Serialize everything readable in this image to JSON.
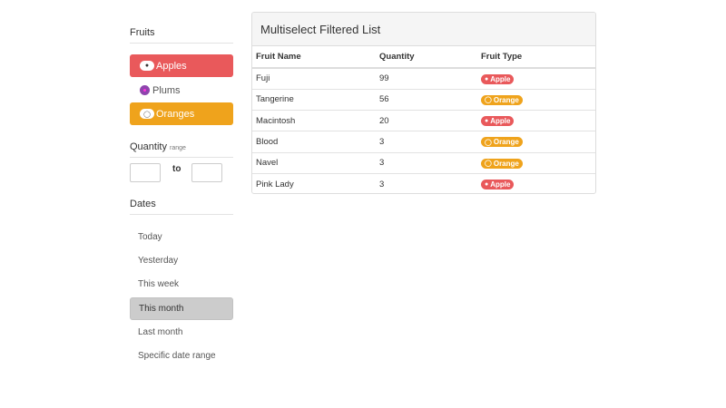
{
  "sidebar": {
    "fruits_title": "Fruits",
    "fruits": [
      {
        "label": "Apples",
        "icon": "apple-icon",
        "selected": true,
        "color": "#e9595b"
      },
      {
        "label": "Plums",
        "icon": "plum-icon",
        "selected": false,
        "color": "#8e44ad"
      },
      {
        "label": "Oranges",
        "icon": "orange-icon",
        "selected": true,
        "color": "#efa31c"
      }
    ],
    "quantity_title": "Quantity",
    "quantity_sub": "range",
    "to_label": "to",
    "quantity_min": "",
    "quantity_max": "",
    "dates_title": "Dates",
    "dates": [
      {
        "label": "Today"
      },
      {
        "label": "Yesterday"
      },
      {
        "label": "This week"
      },
      {
        "label": "This month",
        "selected": true
      },
      {
        "label": "Last month"
      },
      {
        "label": "Specific date range"
      }
    ]
  },
  "panel": {
    "title": "Multiselect Filtered List",
    "columns": [
      "Fruit Name",
      "Quantity",
      "Fruit Type"
    ],
    "rows": [
      {
        "name": "Fuji",
        "qty": "99",
        "type": "Apple"
      },
      {
        "name": "Tangerine",
        "qty": "56",
        "type": "Orange"
      },
      {
        "name": "Macintosh",
        "qty": "20",
        "type": "Apple"
      },
      {
        "name": "Blood",
        "qty": "3",
        "type": "Orange"
      },
      {
        "name": "Navel",
        "qty": "3",
        "type": "Orange"
      },
      {
        "name": "Pink Lady",
        "qty": "3",
        "type": "Apple"
      }
    ]
  },
  "colors": {
    "apple": "#e9595b",
    "orange": "#efa31c",
    "plum": "#8e44ad"
  }
}
